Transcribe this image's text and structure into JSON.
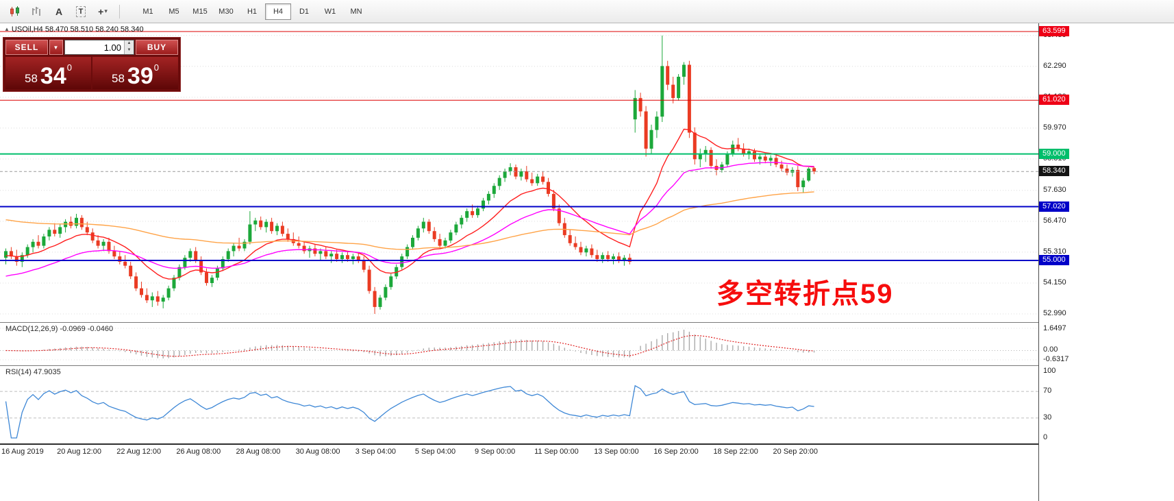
{
  "toolbar": {
    "timeframes": [
      "M1",
      "M5",
      "M15",
      "M30",
      "H1",
      "H4",
      "D1",
      "W1",
      "MN"
    ],
    "active_timeframe": "H4",
    "letter_tool": "A",
    "text_tool": "T",
    "crosshair_glyph": "+",
    "caret_glyph": "▾"
  },
  "quote_header": {
    "symbol_ohlc": "USOil,H4  58.470 58.510 58.240 58.340"
  },
  "trade_panel": {
    "sell_label": "SELL",
    "buy_label": "BUY",
    "volume": "1.00",
    "caret": "▼",
    "spin_up": "▲",
    "spin_down": "▼",
    "sell_price": {
      "int": "58",
      "pips": "34",
      "sup": "0"
    },
    "buy_price": {
      "int": "58",
      "pips": "39",
      "sup": "0"
    }
  },
  "annotation": {
    "text": "多空转折点59",
    "color": "#f60d0d"
  },
  "price_axis": {
    "ticks": [
      "63.450",
      "62.290",
      "61.130",
      "59.970",
      "58.810",
      "57.630",
      "56.470",
      "55.310",
      "54.150",
      "52.990"
    ],
    "levels": [
      {
        "value": 63.599,
        "label": "63.599",
        "bg": "#ee0016",
        "line": "#dd0000",
        "width": 1,
        "dash": false
      },
      {
        "value": 61.02,
        "label": "61.020",
        "bg": "#ee0016",
        "line": "#dd0000",
        "width": 1,
        "dash": false
      },
      {
        "value": 59.0,
        "label": "59.000",
        "bg": "#00be6b",
        "line": "#00be6b",
        "width": 2,
        "dash": false
      },
      {
        "value": 58.34,
        "label": "58.340",
        "bg": "#141414",
        "line": "#9a9a9a",
        "width": 1,
        "dash": true
      },
      {
        "value": 57.02,
        "label": "57.020",
        "bg": "#0000c8",
        "line": "#0000c8",
        "width": 2,
        "dash": false
      },
      {
        "value": 55.0,
        "label": "55.000",
        "bg": "#0000c8",
        "line": "#0000c8",
        "width": 2,
        "dash": false
      }
    ]
  },
  "chart_data": {
    "type": "candlestick",
    "symbol": "USOil",
    "timeframe": "H4",
    "title": "USOil,H4",
    "ylim": [
      52.71,
      63.91
    ],
    "colors": {
      "up": "#1ca83a",
      "down": "#ea3b23"
    },
    "ohlc": [
      [
        55.1,
        55.45,
        54.85,
        55.35
      ],
      [
        55.35,
        55.5,
        55.05,
        55.15
      ],
      [
        55.15,
        55.4,
        54.8,
        54.95
      ],
      [
        54.95,
        55.3,
        54.75,
        55.2
      ],
      [
        55.2,
        55.6,
        55.1,
        55.5
      ],
      [
        55.5,
        55.8,
        55.3,
        55.7
      ],
      [
        55.7,
        55.95,
        55.45,
        55.55
      ],
      [
        55.55,
        56.0,
        55.45,
        55.9
      ],
      [
        55.9,
        56.25,
        55.75,
        56.15
      ],
      [
        56.15,
        56.4,
        55.9,
        56.0
      ],
      [
        56.0,
        56.35,
        55.85,
        56.25
      ],
      [
        56.25,
        56.55,
        56.05,
        56.45
      ],
      [
        56.45,
        56.65,
        56.2,
        56.3
      ],
      [
        56.3,
        56.75,
        56.2,
        56.6
      ],
      [
        56.6,
        56.7,
        56.15,
        56.25
      ],
      [
        56.25,
        56.45,
        55.95,
        56.05
      ],
      [
        56.05,
        56.2,
        55.65,
        55.75
      ],
      [
        55.75,
        55.95,
        55.45,
        55.55
      ],
      [
        55.55,
        55.8,
        55.35,
        55.7
      ],
      [
        55.7,
        55.85,
        55.25,
        55.35
      ],
      [
        55.35,
        55.55,
        55.05,
        55.15
      ],
      [
        55.15,
        55.35,
        54.85,
        54.95
      ],
      [
        54.95,
        55.2,
        54.7,
        54.8
      ],
      [
        54.8,
        54.95,
        54.3,
        54.4
      ],
      [
        54.4,
        54.55,
        53.85,
        53.95
      ],
      [
        53.95,
        54.2,
        53.6,
        53.7
      ],
      [
        53.7,
        53.95,
        53.4,
        53.5
      ],
      [
        53.5,
        53.8,
        53.25,
        53.65
      ],
      [
        53.65,
        53.85,
        53.3,
        53.45
      ],
      [
        53.45,
        53.7,
        53.2,
        53.6
      ],
      [
        53.6,
        54.05,
        53.5,
        53.95
      ],
      [
        53.95,
        54.45,
        53.85,
        54.35
      ],
      [
        54.35,
        54.85,
        54.25,
        54.75
      ],
      [
        54.75,
        55.2,
        54.65,
        55.1
      ],
      [
        55.1,
        55.45,
        54.95,
        55.35
      ],
      [
        55.35,
        55.5,
        54.9,
        55.0
      ],
      [
        55.0,
        55.15,
        54.45,
        54.55
      ],
      [
        54.55,
        54.7,
        54.05,
        54.15
      ],
      [
        54.15,
        54.45,
        54.0,
        54.35
      ],
      [
        54.35,
        54.8,
        54.25,
        54.7
      ],
      [
        54.7,
        55.15,
        54.6,
        55.05
      ],
      [
        55.05,
        55.45,
        54.95,
        55.35
      ],
      [
        55.35,
        55.65,
        55.15,
        55.55
      ],
      [
        55.55,
        55.85,
        55.35,
        55.45
      ],
      [
        55.45,
        55.8,
        55.35,
        55.7
      ],
      [
        55.7,
        56.85,
        55.6,
        56.35
      ],
      [
        56.35,
        56.6,
        56.1,
        56.5
      ],
      [
        56.5,
        56.65,
        56.15,
        56.25
      ],
      [
        56.25,
        56.55,
        56.05,
        56.45
      ],
      [
        56.45,
        56.6,
        56.0,
        56.1
      ],
      [
        56.1,
        56.4,
        55.95,
        56.3
      ],
      [
        56.3,
        56.45,
        55.9,
        56.0
      ],
      [
        56.0,
        56.2,
        55.7,
        55.8
      ],
      [
        55.8,
        56.05,
        55.55,
        55.65
      ],
      [
        55.65,
        55.9,
        55.45,
        55.55
      ],
      [
        55.55,
        55.7,
        55.25,
        55.35
      ],
      [
        55.35,
        55.55,
        55.1,
        55.45
      ],
      [
        55.45,
        55.6,
        55.15,
        55.25
      ],
      [
        55.25,
        55.45,
        55.0,
        55.35
      ],
      [
        55.35,
        55.5,
        55.05,
        55.15
      ],
      [
        55.15,
        55.35,
        54.9,
        55.25
      ],
      [
        55.25,
        55.4,
        54.95,
        55.05
      ],
      [
        55.05,
        55.3,
        54.9,
        55.2
      ],
      [
        55.2,
        55.35,
        54.95,
        55.05
      ],
      [
        55.05,
        55.25,
        54.85,
        55.15
      ],
      [
        55.15,
        55.3,
        54.9,
        55.0
      ],
      [
        55.0,
        55.15,
        54.55,
        54.65
      ],
      [
        54.65,
        54.8,
        53.75,
        53.85
      ],
      [
        53.85,
        54.0,
        52.99,
        53.25
      ],
      [
        53.25,
        53.7,
        53.15,
        53.6
      ],
      [
        53.6,
        54.1,
        53.5,
        54.0
      ],
      [
        54.0,
        54.5,
        53.9,
        54.4
      ],
      [
        54.4,
        54.85,
        54.3,
        54.75
      ],
      [
        54.75,
        55.25,
        54.65,
        55.15
      ],
      [
        55.15,
        55.6,
        55.05,
        55.5
      ],
      [
        55.5,
        55.95,
        55.4,
        55.85
      ],
      [
        55.85,
        56.3,
        55.75,
        56.2
      ],
      [
        56.2,
        56.6,
        56.05,
        56.45
      ],
      [
        56.45,
        56.55,
        56.0,
        56.1
      ],
      [
        56.1,
        56.25,
        55.7,
        55.8
      ],
      [
        55.8,
        56.0,
        55.45,
        55.55
      ],
      [
        55.55,
        55.85,
        55.45,
        55.75
      ],
      [
        55.75,
        56.15,
        55.65,
        56.05
      ],
      [
        56.05,
        56.45,
        55.95,
        56.35
      ],
      [
        56.35,
        56.7,
        56.2,
        56.6
      ],
      [
        56.6,
        56.95,
        56.45,
        56.85
      ],
      [
        56.85,
        57.1,
        56.6,
        56.7
      ],
      [
        56.7,
        57.05,
        56.6,
        56.95
      ],
      [
        56.95,
        57.35,
        56.85,
        57.25
      ],
      [
        57.25,
        57.6,
        57.1,
        57.5
      ],
      [
        57.5,
        57.9,
        57.35,
        57.8
      ],
      [
        57.8,
        58.2,
        57.65,
        58.1
      ],
      [
        58.1,
        58.45,
        57.95,
        58.35
      ],
      [
        58.35,
        58.65,
        58.2,
        58.5
      ],
      [
        58.5,
        58.6,
        58.05,
        58.15
      ],
      [
        58.15,
        58.45,
        58.0,
        58.35
      ],
      [
        58.35,
        58.55,
        57.95,
        58.05
      ],
      [
        58.05,
        58.3,
        57.8,
        57.9
      ],
      [
        57.9,
        58.25,
        57.8,
        58.15
      ],
      [
        58.15,
        58.35,
        57.85,
        57.95
      ],
      [
        57.95,
        58.1,
        57.4,
        57.5
      ],
      [
        57.5,
        57.65,
        56.85,
        56.95
      ],
      [
        56.95,
        57.1,
        56.3,
        56.4
      ],
      [
        56.4,
        56.6,
        55.85,
        55.95
      ],
      [
        55.95,
        56.15,
        55.55,
        55.65
      ],
      [
        55.65,
        55.9,
        55.4,
        55.5
      ],
      [
        55.5,
        55.7,
        55.2,
        55.3
      ],
      [
        55.3,
        55.55,
        55.15,
        55.45
      ],
      [
        55.45,
        55.6,
        55.1,
        55.2
      ],
      [
        55.2,
        55.4,
        54.95,
        55.05
      ],
      [
        55.05,
        55.3,
        54.9,
        55.2
      ],
      [
        55.2,
        55.35,
        54.95,
        55.05
      ],
      [
        55.05,
        55.25,
        54.85,
        55.15
      ],
      [
        55.15,
        55.3,
        54.9,
        55.0
      ],
      [
        55.0,
        55.2,
        54.8,
        55.1
      ],
      [
        55.1,
        55.25,
        54.85,
        54.95
      ],
      [
        60.3,
        61.4,
        59.8,
        61.1
      ],
      [
        61.1,
        61.3,
        60.4,
        60.6
      ],
      [
        60.6,
        60.8,
        58.9,
        59.2
      ],
      [
        59.2,
        60.1,
        59.0,
        59.9
      ],
      [
        59.9,
        60.6,
        59.6,
        60.4
      ],
      [
        60.4,
        63.45,
        60.2,
        62.3
      ],
      [
        62.3,
        62.5,
        61.4,
        61.6
      ],
      [
        61.6,
        61.9,
        60.9,
        61.1
      ],
      [
        61.1,
        62.0,
        61.0,
        61.9
      ],
      [
        61.9,
        62.45,
        61.6,
        62.35
      ],
      [
        62.35,
        62.5,
        59.6,
        59.8
      ],
      [
        59.8,
        60.0,
        58.6,
        58.8
      ],
      [
        58.8,
        59.2,
        58.5,
        59.0
      ],
      [
        59.0,
        59.3,
        58.7,
        59.15
      ],
      [
        59.15,
        59.25,
        58.45,
        58.55
      ],
      [
        58.55,
        58.8,
        58.2,
        58.4
      ],
      [
        58.4,
        58.7,
        58.3,
        58.6
      ],
      [
        58.6,
        59.1,
        58.5,
        59.0
      ],
      [
        59.0,
        59.5,
        58.9,
        59.35
      ],
      [
        59.35,
        59.6,
        59.1,
        59.2
      ],
      [
        59.2,
        59.4,
        58.9,
        59.0
      ],
      [
        59.0,
        59.2,
        58.8,
        59.1
      ],
      [
        59.1,
        59.2,
        58.7,
        58.8
      ],
      [
        58.8,
        59.0,
        58.6,
        58.9
      ],
      [
        58.9,
        59.05,
        58.65,
        58.75
      ],
      [
        58.75,
        58.95,
        58.55,
        58.85
      ],
      [
        58.85,
        58.95,
        58.5,
        58.6
      ],
      [
        58.6,
        58.75,
        58.35,
        58.45
      ],
      [
        58.45,
        58.6,
        58.2,
        58.3
      ],
      [
        58.3,
        58.5,
        58.15,
        58.4
      ],
      [
        58.4,
        58.55,
        57.6,
        57.75
      ],
      [
        57.75,
        58.1,
        57.55,
        58.0
      ],
      [
        58.0,
        58.5,
        57.95,
        58.45
      ],
      [
        58.47,
        58.51,
        58.24,
        58.34
      ]
    ],
    "x_labels": [
      {
        "text": "16 Aug 2019",
        "index": 0
      },
      {
        "text": "20 Aug 12:00",
        "index": 11
      },
      {
        "text": "22 Aug 12:00",
        "index": 22
      },
      {
        "text": "26 Aug 08:00",
        "index": 33
      },
      {
        "text": "28 Aug 08:00",
        "index": 44
      },
      {
        "text": "30 Aug 08:00",
        "index": 55
      },
      {
        "text": "3 Sep 04:00",
        "index": 66
      },
      {
        "text": "5 Sep 04:00",
        "index": 77
      },
      {
        "text": "9 Sep 00:00",
        "index": 88
      },
      {
        "text": "11 Sep 00:00",
        "index": 99
      },
      {
        "text": "13 Sep 00:00",
        "index": 110
      },
      {
        "text": "16 Sep 20:00",
        "index": 121
      },
      {
        "text": "18 Sep 22:00",
        "index": 132
      },
      {
        "text": "20 Sep 20:00",
        "index": 143
      }
    ],
    "overlays": [
      {
        "name": "ma-fast-red",
        "period": 14,
        "color": "#ff1e1e",
        "seed": 55.15
      },
      {
        "name": "ma-medium-magenta",
        "period": 34,
        "color": "#ff00ff",
        "seed": 54.35
      },
      {
        "name": "ma-slow-orange",
        "period": 100,
        "color": "#ffa347",
        "seed": 56.55
      }
    ],
    "indicators": {
      "macd": {
        "label": "MACD(12,26,9) -0.0969 -0.0460",
        "params": [
          12,
          26,
          9
        ],
        "values": {
          "main": -0.0969,
          "signal": -0.046
        },
        "axis": [
          "1.6497",
          "0.00",
          "-0.6317"
        ],
        "histogram_color": "#ababab",
        "signal_color": "#e02020"
      },
      "rsi": {
        "label": "RSI(14) 47.9035",
        "period": 14,
        "value": 47.9035,
        "axis": [
          "100",
          "70",
          "30",
          "0"
        ],
        "guide_levels": [
          70,
          30
        ],
        "line_color": "#3d87d6"
      }
    }
  }
}
